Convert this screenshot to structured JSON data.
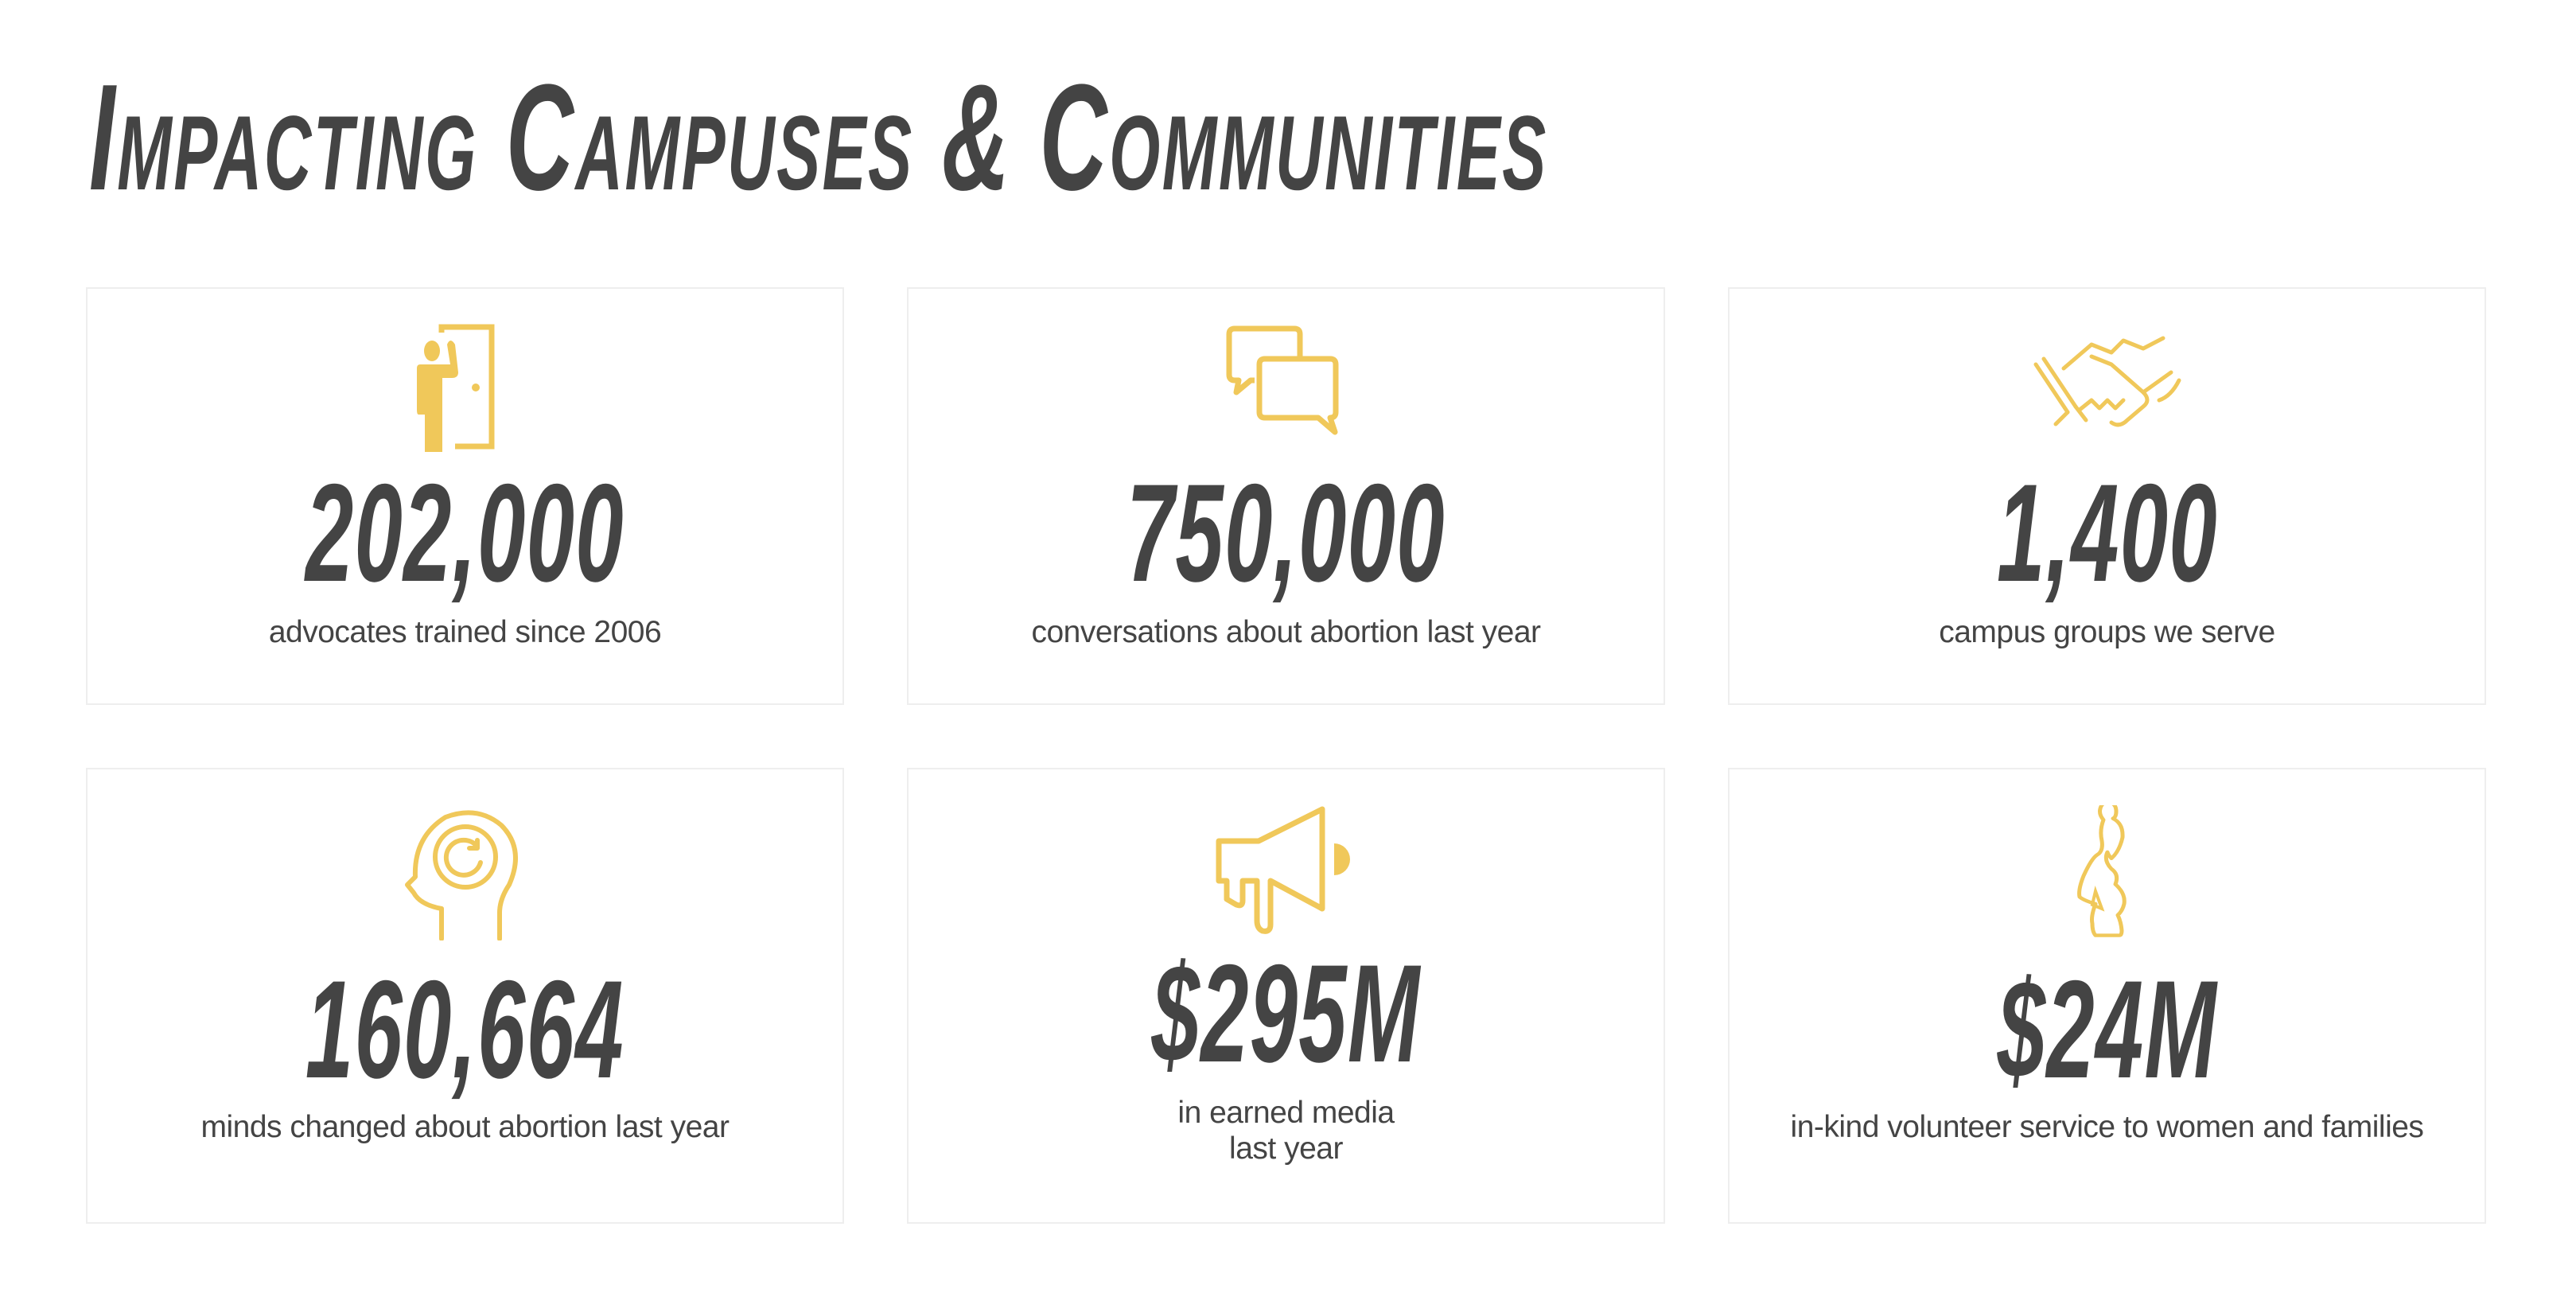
{
  "title": "Impacting Campuses & Communities",
  "accent_color": "#f0c85a",
  "text_color": "#444444",
  "stats": [
    {
      "icon": "door-knocking-person-icon",
      "value": "202,000",
      "label": "advocates trained since 2006"
    },
    {
      "icon": "chat-bubbles-icon",
      "value": "750,000",
      "label": "conversations about abortion last year"
    },
    {
      "icon": "handshake-icon",
      "value": "1,400",
      "label": "campus groups we serve"
    },
    {
      "icon": "mind-change-head-icon",
      "value": "160,664",
      "label": "minds changed about abortion last year"
    },
    {
      "icon": "megaphone-icon",
      "value": "$295M",
      "label_lines": [
        "in earned media",
        "last year"
      ]
    },
    {
      "icon": "pregnant-woman-icon",
      "value": "$24M",
      "label": "in-kind volunteer service to women and families"
    }
  ]
}
